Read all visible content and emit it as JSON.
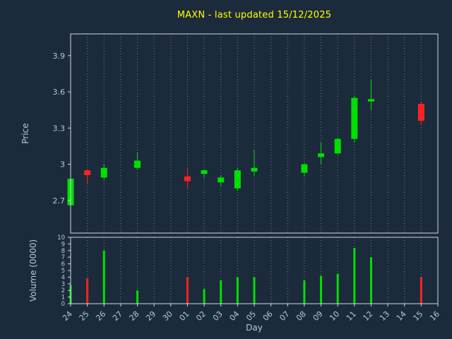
{
  "chart_data": {
    "type": "candlestick",
    "title": "MAXN - last updated 15/12/2025",
    "xlabel": "Day",
    "price_ylabel": "Price",
    "volume_ylabel": "Volume (0000)",
    "legend": "none",
    "grid": "vertical-dotted",
    "categories": [
      "24",
      "25",
      "26",
      "27",
      "28",
      "29",
      "30",
      "01",
      "02",
      "03",
      "04",
      "05",
      "06",
      "07",
      "08",
      "09",
      "10",
      "11",
      "12",
      "13",
      "14",
      "15",
      "16"
    ],
    "price_ticks": [
      2.7,
      3.0,
      3.3,
      3.6,
      3.9
    ],
    "price_tick_labels": [
      "2.7",
      "3",
      "3.3",
      "3.6",
      "3.9"
    ],
    "price_ylim": [
      2.43,
      4.08
    ],
    "volume_ticks": [
      0,
      1,
      2,
      3,
      4,
      5,
      6,
      7,
      8,
      9,
      10
    ],
    "volume_ylim": [
      0,
      10
    ],
    "candles": [
      {
        "day": "24",
        "open": 2.66,
        "high": 2.89,
        "low": 2.66,
        "close": 2.88,
        "volume": 2.8
      },
      {
        "day": "25",
        "open": 2.95,
        "high": 2.96,
        "low": 2.84,
        "close": 2.91,
        "volume": 3.8
      },
      {
        "day": "26",
        "open": 2.89,
        "high": 3.0,
        "low": 2.87,
        "close": 2.97,
        "volume": 8.0
      },
      {
        "day": "28",
        "open": 2.97,
        "high": 3.1,
        "low": 2.96,
        "close": 3.03,
        "volume": 2.0
      },
      {
        "day": "01",
        "open": 2.9,
        "high": 2.97,
        "low": 2.8,
        "close": 2.86,
        "volume": 4.0
      },
      {
        "day": "02",
        "open": 2.92,
        "high": 2.96,
        "low": 2.89,
        "close": 2.95,
        "volume": 2.2
      },
      {
        "day": "03",
        "open": 2.85,
        "high": 2.91,
        "low": 2.82,
        "close": 2.89,
        "volume": 3.5
      },
      {
        "day": "04",
        "open": 2.8,
        "high": 2.97,
        "low": 2.78,
        "close": 2.95,
        "volume": 4.0
      },
      {
        "day": "05",
        "open": 2.94,
        "high": 3.12,
        "low": 2.91,
        "close": 2.97,
        "volume": 4.0
      },
      {
        "day": "08",
        "open": 2.93,
        "high": 3.01,
        "low": 2.9,
        "close": 3.0,
        "volume": 3.5
      },
      {
        "day": "09",
        "open": 3.06,
        "high": 3.18,
        "low": 3.0,
        "close": 3.09,
        "volume": 4.2
      },
      {
        "day": "10",
        "open": 3.09,
        "high": 3.22,
        "low": 3.08,
        "close": 3.21,
        "volume": 4.5
      },
      {
        "day": "11",
        "open": 3.21,
        "high": 3.56,
        "low": 3.18,
        "close": 3.55,
        "volume": 8.4
      },
      {
        "day": "12",
        "open": 3.52,
        "high": 3.7,
        "low": 3.45,
        "close": 3.54,
        "volume": 7.0
      },
      {
        "day": "15",
        "open": 3.5,
        "high": 3.52,
        "low": 3.33,
        "close": 3.36,
        "volume": 4.0
      }
    ],
    "colors": {
      "background": "#1c2b3b",
      "title": "#ffff00",
      "axis_text": "#b4c8dc",
      "spine": "#cdd9e5",
      "grid": "rgba(220,235,250,0.45)",
      "up": "#00e000",
      "down": "#ff2222"
    }
  }
}
